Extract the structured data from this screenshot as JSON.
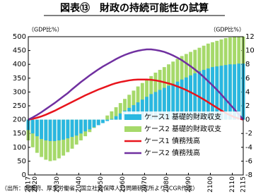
{
  "chart_data": {
    "type": "combo",
    "title": "図表⑬　財政の持続可能性の試算",
    "ylabel": "（GDP比%）",
    "y2label": "（GDP比%）",
    "note": "（出所：内閣府、厚生労働省、国立社会保障人口問題研究所よりSCGR作成）",
    "x": [
      2017,
      2019,
      2021,
      2023,
      2025,
      2027,
      2029,
      2031,
      2033,
      2035,
      2037,
      2039,
      2041,
      2043,
      2045,
      2047,
      2049,
      2051,
      2053,
      2055,
      2057,
      2059,
      2061,
      2063,
      2065,
      2067,
      2069,
      2071,
      2073,
      2075,
      2077,
      2079,
      2081,
      2083,
      2085,
      2087,
      2089,
      2091,
      2093,
      2095,
      2097,
      2099,
      2101,
      2103,
      2105,
      2107,
      2109,
      2111,
      2113,
      2115
    ],
    "xlim": [
      2017,
      2115
    ],
    "xticks": [
      2017,
      2020,
      2030,
      2040,
      2050,
      2060,
      2070,
      2080,
      2090,
      2100,
      2110,
      2115
    ],
    "ylim": [
      0,
      500
    ],
    "yticks": [
      0,
      50,
      100,
      150,
      200,
      250,
      300,
      350,
      400,
      450,
      500
    ],
    "y2lim": [
      -8,
      12
    ],
    "y2ticks": [
      -8,
      -6,
      -4,
      -2,
      0,
      2,
      4,
      6,
      8,
      10,
      12
    ],
    "legend": "lower right",
    "series": [
      {
        "name": "ケース2 基礎的財政収支",
        "type": "bar",
        "axis": "y2",
        "color": "#a6d96a",
        "values": [
          -3,
          -4,
          -4.8,
          -5.4,
          -5.8,
          -6,
          -5.9,
          -5.6,
          -5.2,
          -4.7,
          -4.2,
          -3.6,
          -3,
          -2.4,
          -1.8,
          -1.2,
          -0.6,
          0,
          0.6,
          1.2,
          1.8,
          2.4,
          3,
          3.6,
          4.2,
          4.8,
          5.3,
          5.8,
          6.3,
          6.8,
          7.2,
          7.6,
          8,
          8.4,
          8.8,
          9.2,
          9.5,
          9.8,
          10.1,
          10.4,
          10.7,
          11,
          11.2,
          11.4,
          11.6,
          11.8,
          11.9,
          12,
          12,
          12
        ]
      },
      {
        "name": "ケース1 基礎的財政収支",
        "type": "bar",
        "axis": "y2",
        "color": "#2ab7e0",
        "values": [
          -1.5,
          -2,
          -2.4,
          -2.8,
          -3,
          -3.1,
          -3.1,
          -3,
          -2.9,
          -2.7,
          -2.5,
          -2.3,
          -2,
          -1.7,
          -1.4,
          -1.1,
          -0.8,
          -0.5,
          -0.2,
          0.1,
          0.5,
          0.9,
          1.3,
          1.7,
          2.1,
          2.5,
          2.9,
          3.3,
          3.7,
          4,
          4.3,
          4.6,
          4.9,
          5.2,
          5.5,
          5.8,
          6.1,
          6.4,
          6.7,
          7,
          7.2,
          7.4,
          7.6,
          7.7,
          7.8,
          7.9,
          8,
          8,
          8.1,
          8.1
        ]
      },
      {
        "name": "ケース1 債務残高",
        "type": "line",
        "axis": "y",
        "color": "#e8141c",
        "values": [
          200,
          203,
          207,
          212,
          218,
          225,
          232,
          240,
          248,
          256,
          264,
          272,
          280,
          288,
          295,
          302,
          309,
          315,
          321,
          327,
          332,
          336,
          339,
          342,
          344,
          345,
          345,
          345,
          344,
          342,
          339,
          335,
          331,
          326,
          320,
          314,
          307,
          299,
          291,
          282,
          273,
          263,
          253,
          243,
          233,
          224,
          216,
          209,
          204,
          200
        ]
      },
      {
        "name": "ケース2 債務残高",
        "type": "line",
        "axis": "y",
        "color": "#7030a0",
        "values": [
          200,
          208,
          217,
          227,
          238,
          249,
          260,
          272,
          284,
          296,
          310,
          323,
          336,
          348,
          360,
          371,
          382,
          392,
          401,
          410,
          419,
          427,
          434,
          440,
          445,
          449,
          452,
          454,
          454,
          452,
          449,
          445,
          439,
          432,
          424,
          415,
          404,
          393,
          381,
          368,
          354,
          339,
          324,
          308,
          291,
          273,
          255,
          237,
          218,
          200
        ]
      }
    ]
  }
}
